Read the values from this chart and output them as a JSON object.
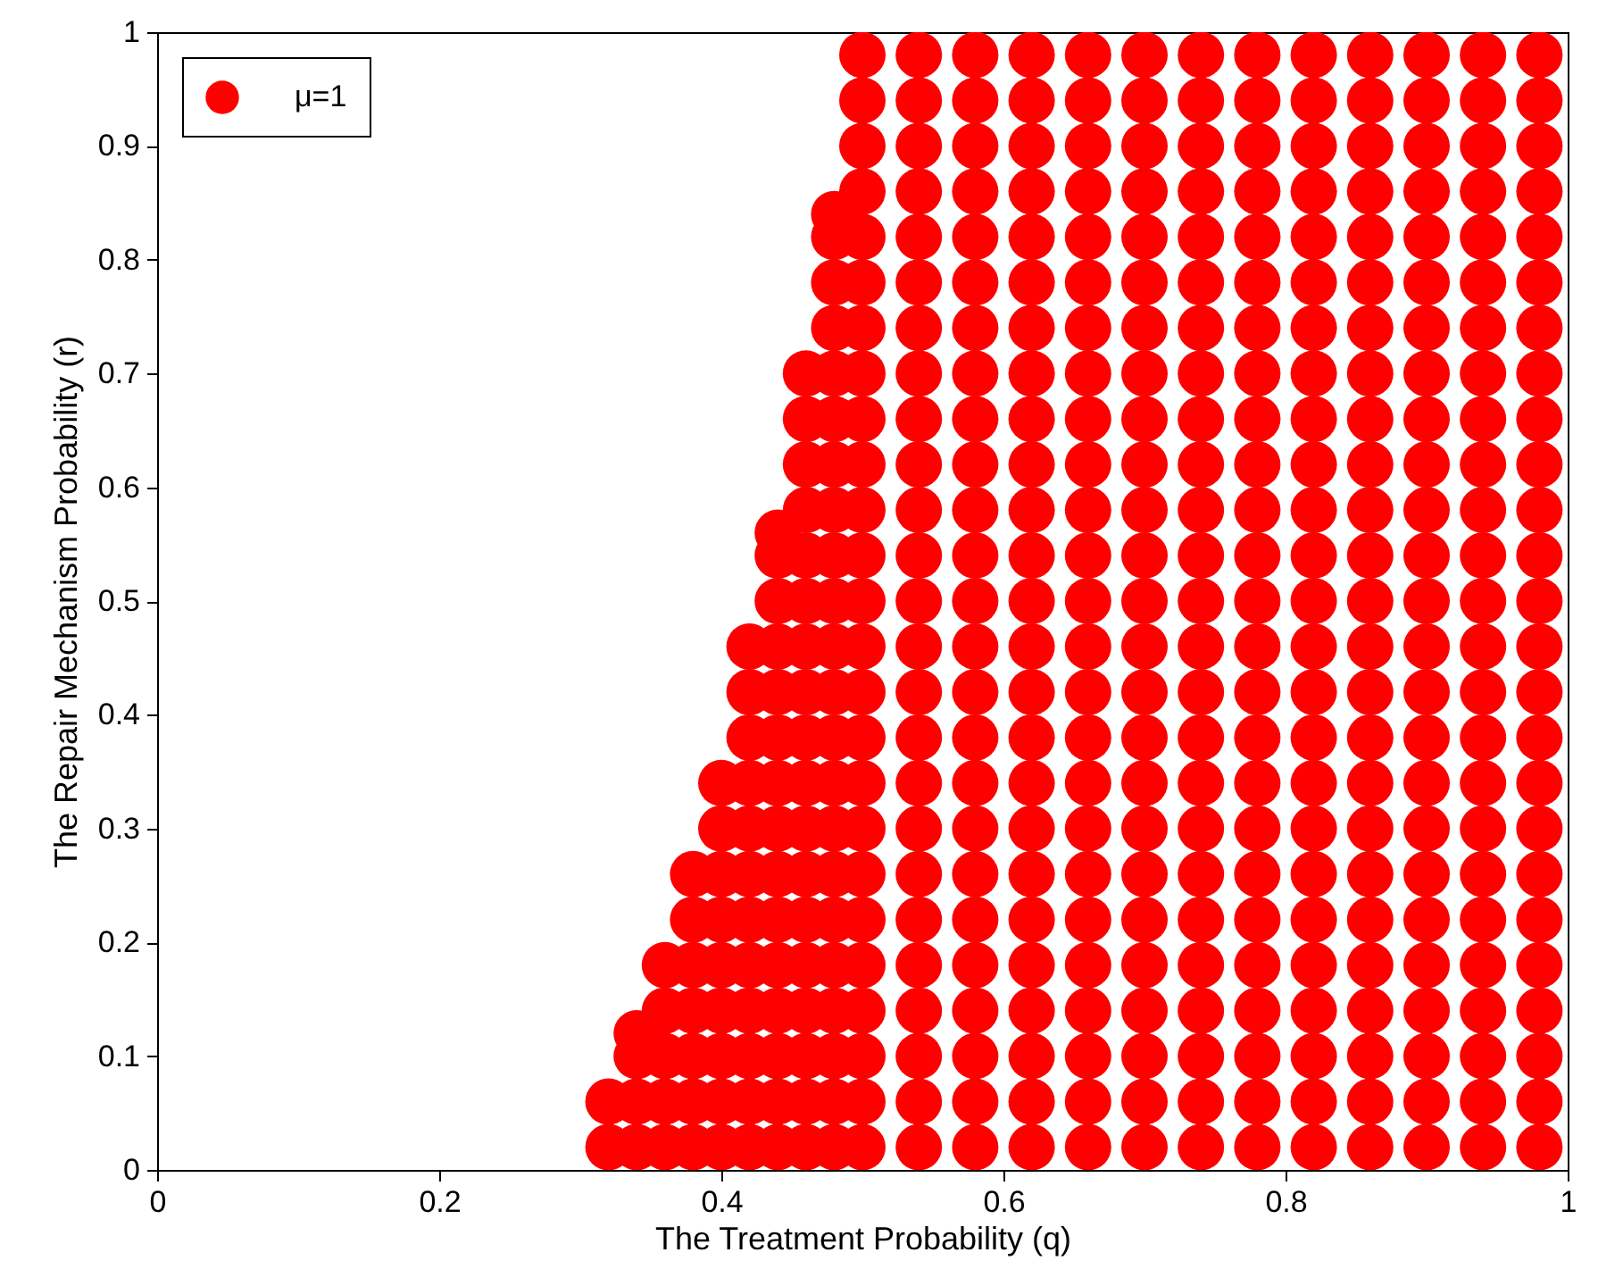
{
  "chart_data": {
    "type": "scatter",
    "xlabel": "The Treatment Probability (q)",
    "ylabel": "The Repair Mechanism Probability (r)",
    "xlim": [
      0,
      1
    ],
    "ylim": [
      0,
      1
    ],
    "xticks": [
      0,
      0.2,
      0.4,
      0.6,
      0.8,
      1
    ],
    "yticks": [
      0,
      0.1,
      0.2,
      0.3,
      0.4,
      0.5,
      0.6,
      0.7,
      0.8,
      0.9,
      1
    ],
    "legend": "top left",
    "marker": "circle",
    "grid": false,
    "x": [
      0.32,
      0.32,
      0.34,
      0.34,
      0.34,
      0.34,
      0.36,
      0.36,
      0.36,
      0.36,
      0.36,
      0.38,
      0.38,
      0.38,
      0.38,
      0.38,
      0.38,
      0.38,
      0.4,
      0.4,
      0.4,
      0.4,
      0.4,
      0.4,
      0.4,
      0.4,
      0.4,
      0.42,
      0.42,
      0.42,
      0.42,
      0.42,
      0.42,
      0.42,
      0.42,
      0.42,
      0.42,
      0.42,
      0.42,
      0.44,
      0.44,
      0.44,
      0.44,
      0.44,
      0.44,
      0.44,
      0.44,
      0.44,
      0.44,
      0.44,
      0.44,
      0.44,
      0.44,
      0.44,
      0.46,
      0.46,
      0.46,
      0.46,
      0.46,
      0.46,
      0.46,
      0.46,
      0.46,
      0.46,
      0.46,
      0.46,
      0.46,
      0.46,
      0.46,
      0.46,
      0.46,
      0.46,
      0.48,
      0.48,
      0.48,
      0.48,
      0.48,
      0.48,
      0.48,
      0.48,
      0.48,
      0.48,
      0.48,
      0.48,
      0.48,
      0.48,
      0.48,
      0.48,
      0.48,
      0.48,
      0.48,
      0.48,
      0.48,
      0.48,
      0.5,
      0.5,
      0.5,
      0.5,
      0.5,
      0.5,
      0.5,
      0.5,
      0.5,
      0.5,
      0.5,
      0.5,
      0.5,
      0.5,
      0.5,
      0.5,
      0.5,
      0.5,
      0.5,
      0.5,
      0.5,
      0.5,
      0.5,
      0.5,
      0.5,
      0.54,
      0.54,
      0.54,
      0.54,
      0.54,
      0.54,
      0.54,
      0.54,
      0.54,
      0.54,
      0.54,
      0.54,
      0.54,
      0.54,
      0.54,
      0.54,
      0.54,
      0.54,
      0.54,
      0.54,
      0.54,
      0.54,
      0.54,
      0.54,
      0.54,
      0.58,
      0.58,
      0.58,
      0.58,
      0.58,
      0.58,
      0.58,
      0.58,
      0.58,
      0.58,
      0.58,
      0.58,
      0.58,
      0.58,
      0.58,
      0.58,
      0.58,
      0.58,
      0.58,
      0.58,
      0.58,
      0.58,
      0.58,
      0.58,
      0.58,
      0.62,
      0.62,
      0.62,
      0.62,
      0.62,
      0.62,
      0.62,
      0.62,
      0.62,
      0.62,
      0.62,
      0.62,
      0.62,
      0.62,
      0.62,
      0.62,
      0.62,
      0.62,
      0.62,
      0.62,
      0.62,
      0.62,
      0.62,
      0.62,
      0.62,
      0.66,
      0.66,
      0.66,
      0.66,
      0.66,
      0.66,
      0.66,
      0.66,
      0.66,
      0.66,
      0.66,
      0.66,
      0.66,
      0.66,
      0.66,
      0.66,
      0.66,
      0.66,
      0.66,
      0.66,
      0.66,
      0.66,
      0.66,
      0.66,
      0.66,
      0.7,
      0.7,
      0.7,
      0.7,
      0.7,
      0.7,
      0.7,
      0.7,
      0.7,
      0.7,
      0.7,
      0.7,
      0.7,
      0.7,
      0.7,
      0.7,
      0.7,
      0.7,
      0.7,
      0.7,
      0.7,
      0.7,
      0.7,
      0.7,
      0.7,
      0.74,
      0.74,
      0.74,
      0.74,
      0.74,
      0.74,
      0.74,
      0.74,
      0.74,
      0.74,
      0.74,
      0.74,
      0.74,
      0.74,
      0.74,
      0.74,
      0.74,
      0.74,
      0.74,
      0.74,
      0.74,
      0.74,
      0.74,
      0.74,
      0.74,
      0.78,
      0.78,
      0.78,
      0.78,
      0.78,
      0.78,
      0.78,
      0.78,
      0.78,
      0.78,
      0.78,
      0.78,
      0.78,
      0.78,
      0.78,
      0.78,
      0.78,
      0.78,
      0.78,
      0.78,
      0.78,
      0.78,
      0.78,
      0.78,
      0.78,
      0.82,
      0.82,
      0.82,
      0.82,
      0.82,
      0.82,
      0.82,
      0.82,
      0.82,
      0.82,
      0.82,
      0.82,
      0.82,
      0.82,
      0.82,
      0.82,
      0.82,
      0.82,
      0.82,
      0.82,
      0.82,
      0.82,
      0.82,
      0.82,
      0.82,
      0.86,
      0.86,
      0.86,
      0.86,
      0.86,
      0.86,
      0.86,
      0.86,
      0.86,
      0.86,
      0.86,
      0.86,
      0.86,
      0.86,
      0.86,
      0.86,
      0.86,
      0.86,
      0.86,
      0.86,
      0.86,
      0.86,
      0.86,
      0.86,
      0.86,
      0.9,
      0.9,
      0.9,
      0.9,
      0.9,
      0.9,
      0.9,
      0.9,
      0.9,
      0.9,
      0.9,
      0.9,
      0.9,
      0.9,
      0.9,
      0.9,
      0.9,
      0.9,
      0.9,
      0.9,
      0.9,
      0.9,
      0.9,
      0.9,
      0.9,
      0.94,
      0.94,
      0.94,
      0.94,
      0.94,
      0.94,
      0.94,
      0.94,
      0.94,
      0.94,
      0.94,
      0.94,
      0.94,
      0.94,
      0.94,
      0.94,
      0.94,
      0.94,
      0.94,
      0.94,
      0.94,
      0.94,
      0.94,
      0.94,
      0.94,
      0.98,
      0.98,
      0.98,
      0.98,
      0.98,
      0.98,
      0.98,
      0.98,
      0.98,
      0.98,
      0.98,
      0.98,
      0.98,
      0.98,
      0.98,
      0.98,
      0.98,
      0.98,
      0.98,
      0.98,
      0.98,
      0.98,
      0.98,
      0.98,
      0.98
    ],
    "series": [
      {
        "name": "μ=1",
        "color": "#ff0000",
        "values": [
          0.02,
          0.06,
          0.02,
          0.06,
          0.1,
          0.12,
          0.02,
          0.06,
          0.1,
          0.14,
          0.18,
          0.02,
          0.06,
          0.1,
          0.14,
          0.18,
          0.22,
          0.26,
          0.02,
          0.06,
          0.1,
          0.14,
          0.18,
          0.22,
          0.26,
          0.3,
          0.34,
          0.02,
          0.06,
          0.1,
          0.14,
          0.18,
          0.22,
          0.26,
          0.3,
          0.34,
          0.38,
          0.42,
          0.46,
          0.02,
          0.06,
          0.1,
          0.14,
          0.18,
          0.22,
          0.26,
          0.3,
          0.34,
          0.38,
          0.42,
          0.46,
          0.5,
          0.54,
          0.56,
          0.02,
          0.06,
          0.1,
          0.14,
          0.18,
          0.22,
          0.26,
          0.3,
          0.34,
          0.38,
          0.42,
          0.46,
          0.5,
          0.54,
          0.58,
          0.62,
          0.66,
          0.7,
          0.02,
          0.06,
          0.1,
          0.14,
          0.18,
          0.22,
          0.26,
          0.3,
          0.34,
          0.38,
          0.42,
          0.46,
          0.5,
          0.54,
          0.58,
          0.62,
          0.66,
          0.7,
          0.74,
          0.78,
          0.82,
          0.84,
          0.02,
          0.06,
          0.1,
          0.14,
          0.18,
          0.22,
          0.26,
          0.3,
          0.34,
          0.38,
          0.42,
          0.46,
          0.5,
          0.54,
          0.58,
          0.62,
          0.66,
          0.7,
          0.74,
          0.78,
          0.82,
          0.86,
          0.9,
          0.94,
          0.98,
          0.02,
          0.06,
          0.1,
          0.14,
          0.18,
          0.22,
          0.26,
          0.3,
          0.34,
          0.38,
          0.42,
          0.46,
          0.5,
          0.54,
          0.58,
          0.62,
          0.66,
          0.7,
          0.74,
          0.78,
          0.82,
          0.86,
          0.9,
          0.94,
          0.98,
          0.02,
          0.06,
          0.1,
          0.14,
          0.18,
          0.22,
          0.26,
          0.3,
          0.34,
          0.38,
          0.42,
          0.46,
          0.5,
          0.54,
          0.58,
          0.62,
          0.66,
          0.7,
          0.74,
          0.78,
          0.82,
          0.86,
          0.9,
          0.94,
          0.98,
          0.02,
          0.06,
          0.1,
          0.14,
          0.18,
          0.22,
          0.26,
          0.3,
          0.34,
          0.38,
          0.42,
          0.46,
          0.5,
          0.54,
          0.58,
          0.62,
          0.66,
          0.7,
          0.74,
          0.78,
          0.82,
          0.86,
          0.9,
          0.94,
          0.98,
          0.02,
          0.06,
          0.1,
          0.14,
          0.18,
          0.22,
          0.26,
          0.3,
          0.34,
          0.38,
          0.42,
          0.46,
          0.5,
          0.54,
          0.58,
          0.62,
          0.66,
          0.7,
          0.74,
          0.78,
          0.82,
          0.86,
          0.9,
          0.94,
          0.98,
          0.02,
          0.06,
          0.1,
          0.14,
          0.18,
          0.22,
          0.26,
          0.3,
          0.34,
          0.38,
          0.42,
          0.46,
          0.5,
          0.54,
          0.58,
          0.62,
          0.66,
          0.7,
          0.74,
          0.78,
          0.82,
          0.86,
          0.9,
          0.94,
          0.98,
          0.02,
          0.06,
          0.1,
          0.14,
          0.18,
          0.22,
          0.26,
          0.3,
          0.34,
          0.38,
          0.42,
          0.46,
          0.5,
          0.54,
          0.58,
          0.62,
          0.66,
          0.7,
          0.74,
          0.78,
          0.82,
          0.86,
          0.9,
          0.94,
          0.98,
          0.02,
          0.06,
          0.1,
          0.14,
          0.18,
          0.22,
          0.26,
          0.3,
          0.34,
          0.38,
          0.42,
          0.46,
          0.5,
          0.54,
          0.58,
          0.62,
          0.66,
          0.7,
          0.74,
          0.78,
          0.82,
          0.86,
          0.9,
          0.94,
          0.98,
          0.02,
          0.06,
          0.1,
          0.14,
          0.18,
          0.22,
          0.26,
          0.3,
          0.34,
          0.38,
          0.42,
          0.46,
          0.5,
          0.54,
          0.58,
          0.62,
          0.66,
          0.7,
          0.74,
          0.78,
          0.82,
          0.86,
          0.9,
          0.94,
          0.98,
          0.02,
          0.06,
          0.1,
          0.14,
          0.18,
          0.22,
          0.26,
          0.3,
          0.34,
          0.38,
          0.42,
          0.46,
          0.5,
          0.54,
          0.58,
          0.62,
          0.66,
          0.7,
          0.74,
          0.78,
          0.82,
          0.86,
          0.9,
          0.94,
          0.98,
          0.02,
          0.06,
          0.1,
          0.14,
          0.18,
          0.22,
          0.26,
          0.3,
          0.34,
          0.38,
          0.42,
          0.46,
          0.5,
          0.54,
          0.58,
          0.62,
          0.66,
          0.7,
          0.74,
          0.78,
          0.82,
          0.86,
          0.9,
          0.94,
          0.98,
          0.02,
          0.06,
          0.1,
          0.14,
          0.18,
          0.22,
          0.26,
          0.3,
          0.34,
          0.38,
          0.42,
          0.46,
          0.5,
          0.54,
          0.58,
          0.62,
          0.66,
          0.7,
          0.74,
          0.78,
          0.82,
          0.86,
          0.9,
          0.94,
          0.98,
          0.02,
          0.06,
          0.1,
          0.14,
          0.18,
          0.22,
          0.26,
          0.3,
          0.34,
          0.38,
          0.42,
          0.46,
          0.5,
          0.54,
          0.58,
          0.62,
          0.66,
          0.7,
          0.74,
          0.78,
          0.82,
          0.86,
          0.9,
          0.94,
          0.98
        ]
      }
    ]
  }
}
